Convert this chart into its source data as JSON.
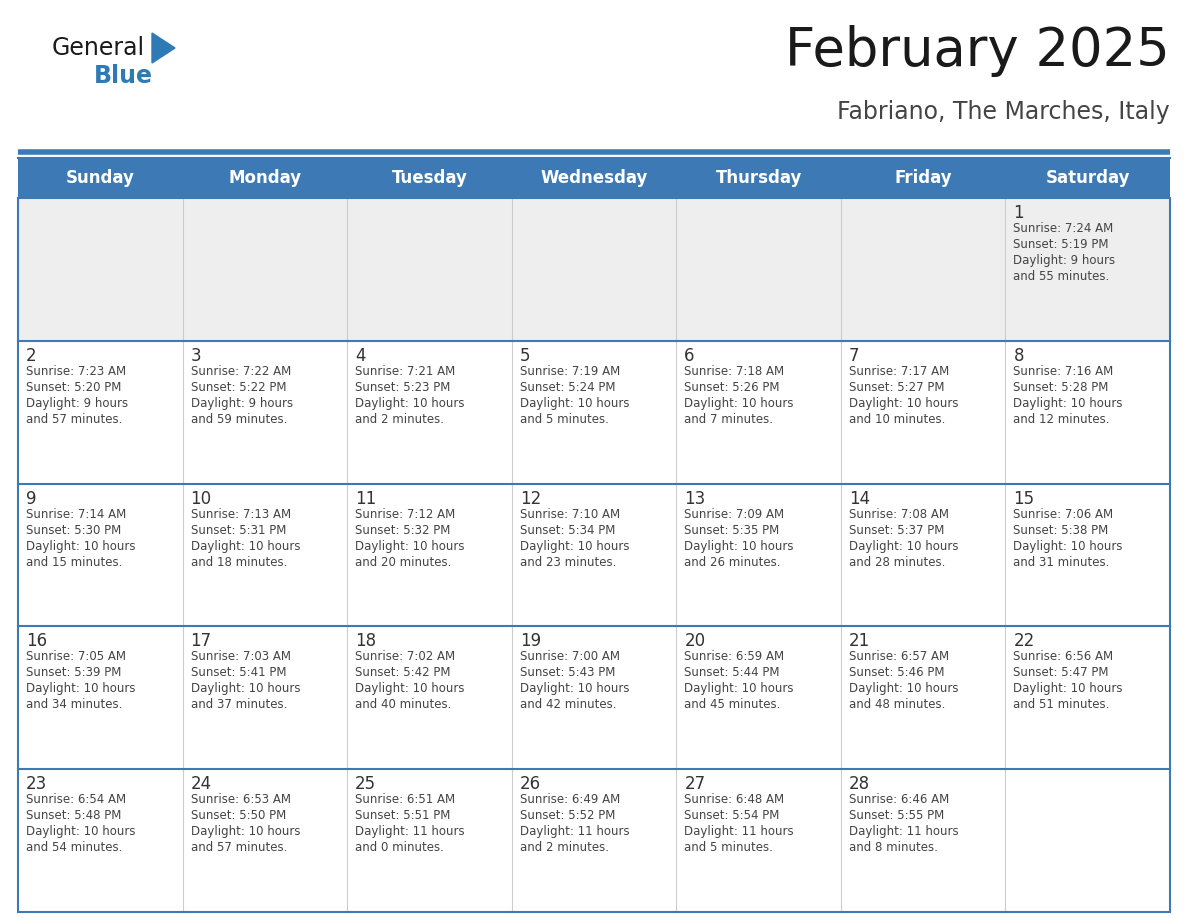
{
  "title": "February 2025",
  "subtitle": "Fabriano, The Marches, Italy",
  "days_of_week": [
    "Sunday",
    "Monday",
    "Tuesday",
    "Wednesday",
    "Thursday",
    "Friday",
    "Saturday"
  ],
  "header_bg": "#3d7ab5",
  "header_text_color": "#ffffff",
  "row0_bg": "#eeeeee",
  "cell_bg": "#ffffff",
  "row_separator_color": "#3d7ab5",
  "col_separator_color": "#cccccc",
  "outer_border_color": "#3d7ab5",
  "text_color": "#444444",
  "day_num_color": "#333333",
  "title_color": "#1a1a1a",
  "subtitle_color": "#444444",
  "logo_general_color": "#1a1a1a",
  "logo_blue_color": "#2e7ab5",
  "calendar_data": [
    {
      "day": 1,
      "row": 0,
      "col": 6,
      "sunrise": "7:24 AM",
      "sunset": "5:19 PM",
      "daylight_line1": "Daylight: 9 hours",
      "daylight_line2": "and 55 minutes."
    },
    {
      "day": 2,
      "row": 1,
      "col": 0,
      "sunrise": "7:23 AM",
      "sunset": "5:20 PM",
      "daylight_line1": "Daylight: 9 hours",
      "daylight_line2": "and 57 minutes."
    },
    {
      "day": 3,
      "row": 1,
      "col": 1,
      "sunrise": "7:22 AM",
      "sunset": "5:22 PM",
      "daylight_line1": "Daylight: 9 hours",
      "daylight_line2": "and 59 minutes."
    },
    {
      "day": 4,
      "row": 1,
      "col": 2,
      "sunrise": "7:21 AM",
      "sunset": "5:23 PM",
      "daylight_line1": "Daylight: 10 hours",
      "daylight_line2": "and 2 minutes."
    },
    {
      "day": 5,
      "row": 1,
      "col": 3,
      "sunrise": "7:19 AM",
      "sunset": "5:24 PM",
      "daylight_line1": "Daylight: 10 hours",
      "daylight_line2": "and 5 minutes."
    },
    {
      "day": 6,
      "row": 1,
      "col": 4,
      "sunrise": "7:18 AM",
      "sunset": "5:26 PM",
      "daylight_line1": "Daylight: 10 hours",
      "daylight_line2": "and 7 minutes."
    },
    {
      "day": 7,
      "row": 1,
      "col": 5,
      "sunrise": "7:17 AM",
      "sunset": "5:27 PM",
      "daylight_line1": "Daylight: 10 hours",
      "daylight_line2": "and 10 minutes."
    },
    {
      "day": 8,
      "row": 1,
      "col": 6,
      "sunrise": "7:16 AM",
      "sunset": "5:28 PM",
      "daylight_line1": "Daylight: 10 hours",
      "daylight_line2": "and 12 minutes."
    },
    {
      "day": 9,
      "row": 2,
      "col": 0,
      "sunrise": "7:14 AM",
      "sunset": "5:30 PM",
      "daylight_line1": "Daylight: 10 hours",
      "daylight_line2": "and 15 minutes."
    },
    {
      "day": 10,
      "row": 2,
      "col": 1,
      "sunrise": "7:13 AM",
      "sunset": "5:31 PM",
      "daylight_line1": "Daylight: 10 hours",
      "daylight_line2": "and 18 minutes."
    },
    {
      "day": 11,
      "row": 2,
      "col": 2,
      "sunrise": "7:12 AM",
      "sunset": "5:32 PM",
      "daylight_line1": "Daylight: 10 hours",
      "daylight_line2": "and 20 minutes."
    },
    {
      "day": 12,
      "row": 2,
      "col": 3,
      "sunrise": "7:10 AM",
      "sunset": "5:34 PM",
      "daylight_line1": "Daylight: 10 hours",
      "daylight_line2": "and 23 minutes."
    },
    {
      "day": 13,
      "row": 2,
      "col": 4,
      "sunrise": "7:09 AM",
      "sunset": "5:35 PM",
      "daylight_line1": "Daylight: 10 hours",
      "daylight_line2": "and 26 minutes."
    },
    {
      "day": 14,
      "row": 2,
      "col": 5,
      "sunrise": "7:08 AM",
      "sunset": "5:37 PM",
      "daylight_line1": "Daylight: 10 hours",
      "daylight_line2": "and 28 minutes."
    },
    {
      "day": 15,
      "row": 2,
      "col": 6,
      "sunrise": "7:06 AM",
      "sunset": "5:38 PM",
      "daylight_line1": "Daylight: 10 hours",
      "daylight_line2": "and 31 minutes."
    },
    {
      "day": 16,
      "row": 3,
      "col": 0,
      "sunrise": "7:05 AM",
      "sunset": "5:39 PM",
      "daylight_line1": "Daylight: 10 hours",
      "daylight_line2": "and 34 minutes."
    },
    {
      "day": 17,
      "row": 3,
      "col": 1,
      "sunrise": "7:03 AM",
      "sunset": "5:41 PM",
      "daylight_line1": "Daylight: 10 hours",
      "daylight_line2": "and 37 minutes."
    },
    {
      "day": 18,
      "row": 3,
      "col": 2,
      "sunrise": "7:02 AM",
      "sunset": "5:42 PM",
      "daylight_line1": "Daylight: 10 hours",
      "daylight_line2": "and 40 minutes."
    },
    {
      "day": 19,
      "row": 3,
      "col": 3,
      "sunrise": "7:00 AM",
      "sunset": "5:43 PM",
      "daylight_line1": "Daylight: 10 hours",
      "daylight_line2": "and 42 minutes."
    },
    {
      "day": 20,
      "row": 3,
      "col": 4,
      "sunrise": "6:59 AM",
      "sunset": "5:44 PM",
      "daylight_line1": "Daylight: 10 hours",
      "daylight_line2": "and 45 minutes."
    },
    {
      "day": 21,
      "row": 3,
      "col": 5,
      "sunrise": "6:57 AM",
      "sunset": "5:46 PM",
      "daylight_line1": "Daylight: 10 hours",
      "daylight_line2": "and 48 minutes."
    },
    {
      "day": 22,
      "row": 3,
      "col": 6,
      "sunrise": "6:56 AM",
      "sunset": "5:47 PM",
      "daylight_line1": "Daylight: 10 hours",
      "daylight_line2": "and 51 minutes."
    },
    {
      "day": 23,
      "row": 4,
      "col": 0,
      "sunrise": "6:54 AM",
      "sunset": "5:48 PM",
      "daylight_line1": "Daylight: 10 hours",
      "daylight_line2": "and 54 minutes."
    },
    {
      "day": 24,
      "row": 4,
      "col": 1,
      "sunrise": "6:53 AM",
      "sunset": "5:50 PM",
      "daylight_line1": "Daylight: 10 hours",
      "daylight_line2": "and 57 minutes."
    },
    {
      "day": 25,
      "row": 4,
      "col": 2,
      "sunrise": "6:51 AM",
      "sunset": "5:51 PM",
      "daylight_line1": "Daylight: 11 hours",
      "daylight_line2": "and 0 minutes."
    },
    {
      "day": 26,
      "row": 4,
      "col": 3,
      "sunrise": "6:49 AM",
      "sunset": "5:52 PM",
      "daylight_line1": "Daylight: 11 hours",
      "daylight_line2": "and 2 minutes."
    },
    {
      "day": 27,
      "row": 4,
      "col": 4,
      "sunrise": "6:48 AM",
      "sunset": "5:54 PM",
      "daylight_line1": "Daylight: 11 hours",
      "daylight_line2": "and 5 minutes."
    },
    {
      "day": 28,
      "row": 4,
      "col": 5,
      "sunrise": "6:46 AM",
      "sunset": "5:55 PM",
      "daylight_line1": "Daylight: 11 hours",
      "daylight_line2": "and 8 minutes."
    }
  ],
  "num_rows": 5,
  "num_cols": 7
}
